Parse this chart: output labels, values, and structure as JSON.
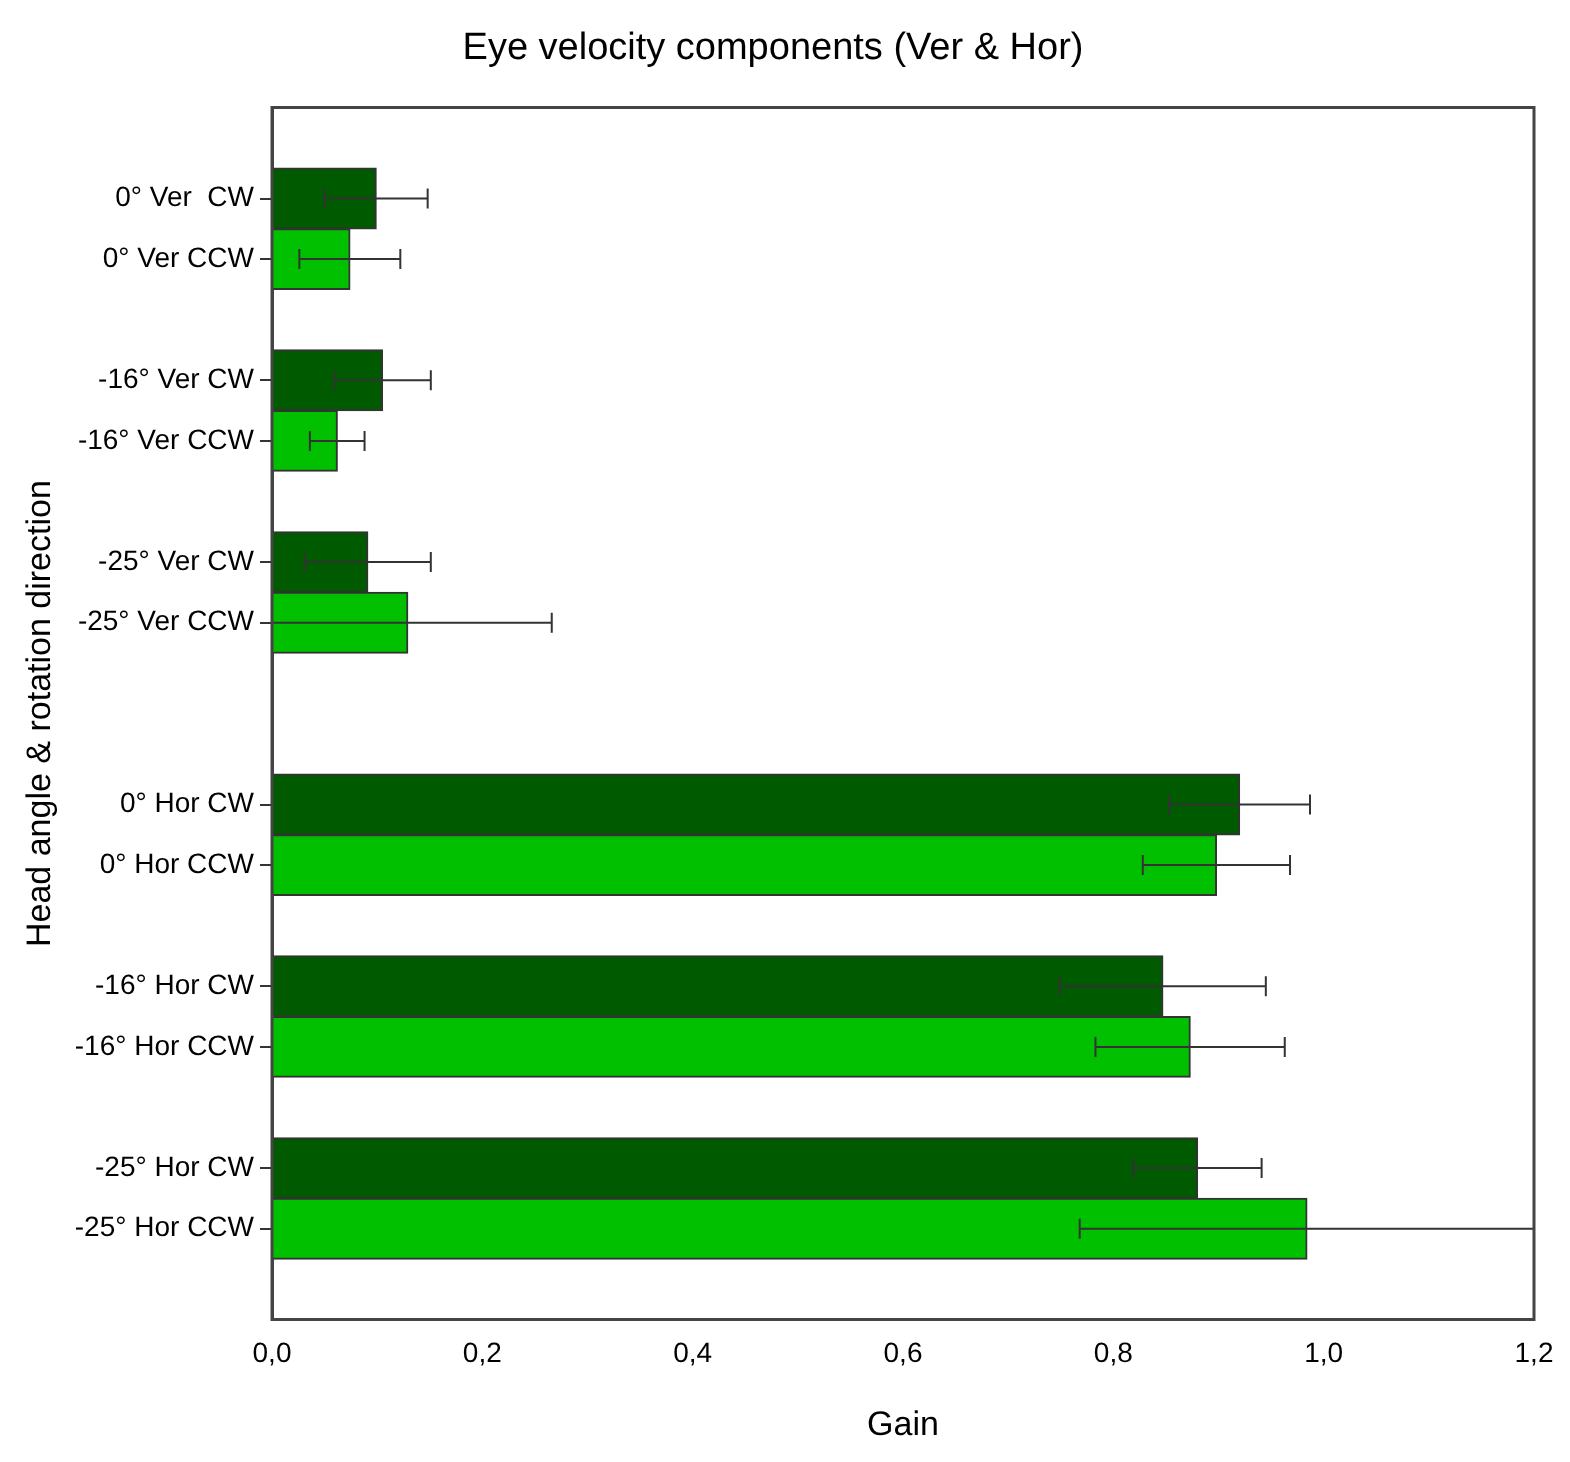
{
  "chart_data": {
    "type": "bar",
    "orientation": "horizontal",
    "title": "Eye velocity components (Ver & Hor)",
    "xlabel": "Gain",
    "ylabel": "Head angle & rotation direction",
    "categories": [
      null,
      "0° Ver  CW",
      "0° Ver CCW",
      null,
      "-16° Ver CW",
      "-16° Ver CCW",
      null,
      "-25° Ver CW",
      "-25° Ver CCW",
      null,
      null,
      "0° Hor CW",
      "0° Hor CCW",
      null,
      "-16° Hor CW",
      "-16° Hor CCW",
      null,
      "-25° Hor CW",
      "-25° Hor CCW",
      null
    ],
    "values": [
      null,
      0.099,
      0.074,
      null,
      0.105,
      0.062,
      null,
      0.091,
      0.129,
      null,
      null,
      0.92,
      0.898,
      null,
      0.847,
      0.873,
      null,
      0.88,
      0.984,
      null
    ],
    "errors": [
      null,
      0.049,
      0.048,
      null,
      0.046,
      0.026,
      null,
      0.06,
      [
        0,
        0.266
      ],
      null,
      null,
      0.067,
      0.07,
      null,
      0.098,
      0.09,
      null,
      0.061,
      0.216,
      null
    ],
    "colors": [
      "#005a00",
      "#005a00",
      "#00c000",
      "#005a00",
      "#005a00",
      "#00c000",
      "#005a00",
      "#005a00",
      "#00c000",
      "#005a00",
      "#005a00",
      "#005a00",
      "#00c000",
      "#005a00",
      "#005a00",
      "#00c000",
      "#005a00",
      "#005a00",
      "#00c000",
      "#005a00"
    ],
    "xlim": [
      0,
      1.2
    ],
    "xticks": [
      {
        "value": 0,
        "label": "0,0"
      },
      {
        "value": 0.2,
        "label": "0,2"
      },
      {
        "value": 0.4,
        "label": "0,4"
      },
      {
        "value": 0.6,
        "label": "0,6"
      },
      {
        "value": 0.8,
        "label": "0,8"
      },
      {
        "value": 1,
        "label": "1,0"
      },
      {
        "value": 1.2,
        "label": "1,2"
      }
    ],
    "grid": false,
    "legend": false
  }
}
